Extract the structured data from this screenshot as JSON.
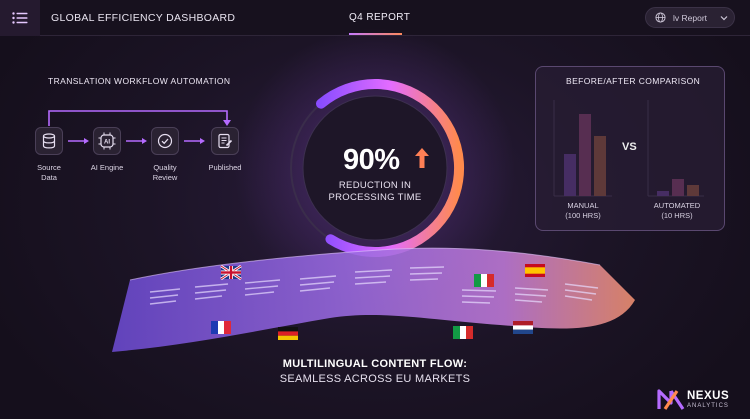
{
  "header": {
    "app_title": "GLOBAL EFFICIENCY DASHBOARD",
    "active_tab": "Q4 REPORT",
    "language_button": "lv Report"
  },
  "workflow": {
    "title": "TRANSLATION WORKFLOW AUTOMATION",
    "steps": [
      {
        "label_1": "Source",
        "label_2": "Data",
        "icon": "database-icon"
      },
      {
        "label_1": "AI Engine",
        "label_2": "",
        "icon": "ai-chip-icon",
        "icon_text": "AI"
      },
      {
        "label_1": "Quality",
        "label_2": "Review",
        "icon": "check-circle-icon"
      },
      {
        "label_1": "Published",
        "label_2": "",
        "icon": "document-edit-icon"
      }
    ]
  },
  "kpi": {
    "value": "90%",
    "label_1": "REDUCTION IN",
    "label_2": "PROCESSING TIME",
    "ring_fraction": 0.9,
    "icon": "arrow-up-icon"
  },
  "comparison": {
    "title": "BEFORE/AFTER COMPARISON",
    "vs_label": "VS",
    "groups": [
      {
        "label_1": "MANUAL",
        "label_2": "(100 HRS)",
        "values": [
          42,
          82,
          60
        ]
      },
      {
        "label_1": "AUTOMATED",
        "label_2": "(10 HRS)",
        "values": [
          5,
          17,
          11
        ]
      }
    ],
    "value_max": 100
  },
  "content_flow": {
    "title": "MULTILINGUAL CONTENT FLOW:",
    "subtitle": "SEAMLESS ACROSS EU MARKETS",
    "flags": [
      "uk-flag-icon",
      "france-flag-icon",
      "germany-flag-icon",
      "italy-flag-icon",
      "spain-flag-icon",
      "italy-flag-icon",
      "netherlands-flag-icon"
    ]
  },
  "brand": {
    "name": "NEXUS",
    "tagline": "ANALYTICS"
  },
  "colors": {
    "accent_purple": "#b56bff",
    "accent_orange": "#ff8a4c",
    "background": "#1a1222"
  }
}
